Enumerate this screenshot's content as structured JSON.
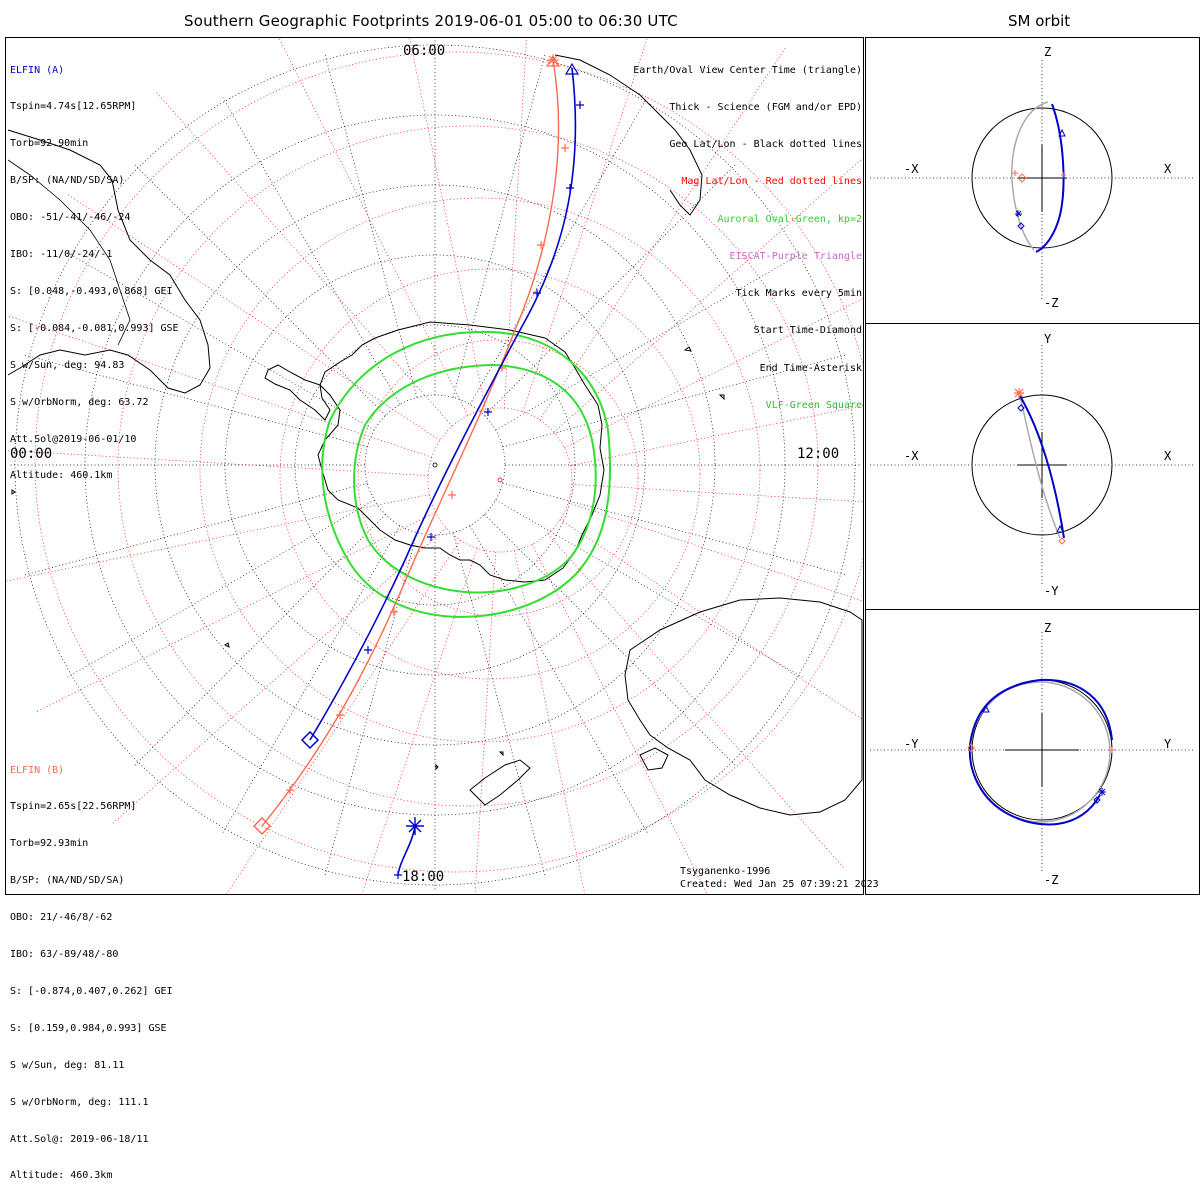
{
  "title": "Southern Geographic Footprints 2019-06-01 05:00 to 06:30 UTC",
  "side_title": "SM orbit",
  "colors": {
    "elfin_a": "#0000cc",
    "elfin_b": "#ff6a4d",
    "mag_grid": "#ff0000",
    "oval": "#33dd33",
    "eiscat": "#cc66cc",
    "vlf": "#33bb33",
    "orbit_grey": "#aaaaaa"
  },
  "clock": {
    "top": "06:00",
    "left": "00:00",
    "right": "12:00",
    "bottom": "18:00"
  },
  "elfin_a": {
    "name": "ELFIN (A)",
    "lines": [
      "Tspin=4.74s[12.65RPM]",
      "Torb=92.90min",
      "B/SP: (NA/ND/SD/SA)",
      "OBO: -51/-41/-46/-24",
      "IBO: -11/0/-24/-1",
      "S: [0.048,-0.493,0.868] GEI",
      "S: [-0.084,-0.081,0.993] GSE",
      "S w/Sun, deg: 94.83",
      "S w/OrbNorm, deg: 63.72",
      "Att.Sol@2019-06-01/10",
      "Altitude: 460.1km"
    ]
  },
  "elfin_b": {
    "name": "ELFIN (B)",
    "lines": [
      "Tspin=2.65s[22.56RPM]",
      "Torb=92.93min",
      "B/SP: (NA/ND/SD/SA)",
      "OBO: 21/-46/8/-62",
      "IBO: 63/-89/48/-80",
      "S: [-0.874,0.407,0.262] GEI",
      "S: [0.159,0.984,0.993] GSE",
      "S w/Sun, deg: 81.11",
      "S w/OrbNorm, deg: 111.1",
      "Att.Sol@: 2019-06-18/11",
      "Altitude: 460.3km"
    ]
  },
  "legend": [
    {
      "text": "Earth/Oval View Center Time (triangle)",
      "color": "#000000"
    },
    {
      "text": "Thick - Science (FGM and/or EPD)",
      "color": "#000000"
    },
    {
      "text": "Geo Lat/Lon - Black dotted lines",
      "color": "#000000"
    },
    {
      "text": "Mag Lat/Lon - Red dotted lines",
      "color": "#ff0000"
    },
    {
      "text": "Auroral Oval-Green, kp=2",
      "color": "#33cc33"
    },
    {
      "text": "EISCAT-Purple Triangle",
      "color": "#cc66cc"
    },
    {
      "text": "Tick Marks every 5min",
      "color": "#000000"
    },
    {
      "text": "Start Time-Diamond",
      "color": "#000000"
    },
    {
      "text": "End Time-Asterisk",
      "color": "#000000"
    },
    {
      "text": "VLF-Green Square",
      "color": "#33bb33"
    }
  ],
  "credit": {
    "model": "Tsyganenko-1996",
    "created": "Created: Wed Jan 25 07:39:21 2023"
  },
  "orbit_panels": [
    {
      "name": "xz",
      "top": "Z",
      "bottom": "-Z",
      "left": "-X",
      "right": "X"
    },
    {
      "name": "xy",
      "top": "Y",
      "bottom": "-Y",
      "left": "-X",
      "right": "X"
    },
    {
      "name": "yz",
      "top": "Z",
      "bottom": "-Z",
      "left": "-Y",
      "right": "Y"
    }
  ]
}
